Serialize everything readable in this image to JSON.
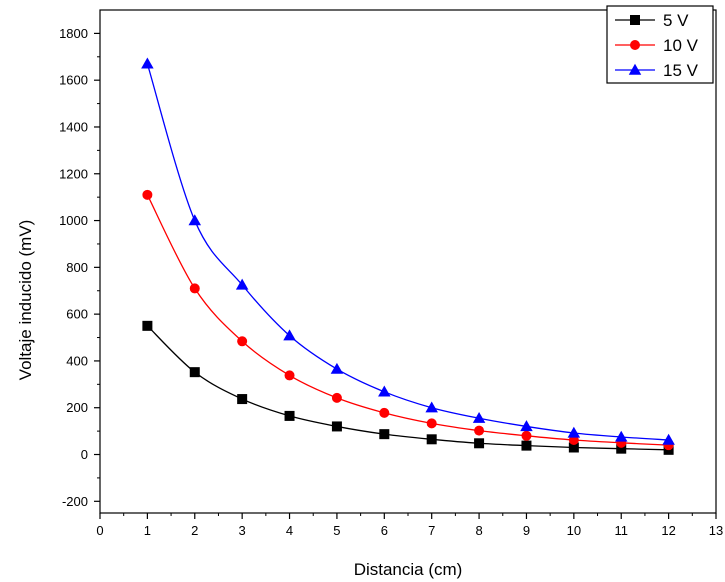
{
  "chart_data": {
    "type": "line",
    "title": "",
    "xlabel": "Distancia (cm)",
    "ylabel": "Voltaje inducido (mV)",
    "xlim": [
      0,
      13
    ],
    "ylim": [
      -250,
      1900
    ],
    "x_ticks": [
      0,
      1,
      2,
      3,
      4,
      5,
      6,
      7,
      8,
      9,
      10,
      11,
      12,
      13
    ],
    "y_ticks": [
      -200,
      0,
      200,
      400,
      600,
      800,
      1000,
      1200,
      1400,
      1600,
      1800
    ],
    "grid": false,
    "legend_position": "top-right",
    "x": [
      1,
      2,
      3,
      4,
      5,
      6,
      7,
      8,
      9,
      10,
      11,
      12
    ],
    "series": [
      {
        "name": "5 V",
        "color": "#000000",
        "marker": "square",
        "values": [
          550,
          352,
          237,
          165,
          120,
          87,
          65,
          48,
          38,
          30,
          25,
          20
        ]
      },
      {
        "name": "10 V",
        "color": "#ff0000",
        "marker": "circle",
        "values": [
          1110,
          710,
          484,
          338,
          242,
          178,
          133,
          102,
          80,
          62,
          50,
          40
        ]
      },
      {
        "name": "15 V",
        "color": "#0000ff",
        "marker": "triangle",
        "values": [
          1670,
          1000,
          725,
          508,
          365,
          268,
          200,
          155,
          120,
          92,
          75,
          62
        ]
      }
    ]
  }
}
